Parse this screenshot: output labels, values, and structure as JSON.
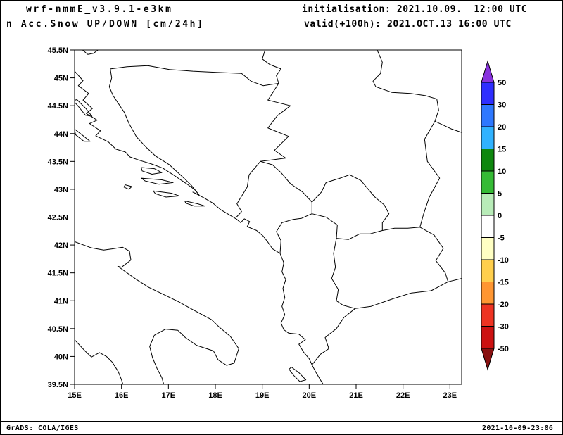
{
  "header": {
    "model_line": "wrf-nmmE_v3.9.1-e3km",
    "product_line": "n Acc.Snow UP/DOWN [cm/24h]",
    "init_line": "initialisation: 2021.10.09.  12:00 UTC",
    "valid_line": "valid(+100h): 2021.OCT.13 16:00 UTC"
  },
  "footer": {
    "credit": "GrADS: COLA/IGES",
    "timestamp": "2021-10-09-23:06"
  },
  "chart_data": {
    "type": "map",
    "title": "Acc.Snow UP/DOWN [cm/24h]",
    "model": "wrf-nmmE_v3.9.1-e3km",
    "initialisation": "2021.10.09. 12:00 UTC",
    "valid": "2021.OCT.13 16:00 UTC (+100h)",
    "grid": false,
    "projection": {
      "lon_range": [
        15.0,
        23.25
      ],
      "lat_range": [
        39.5,
        45.5
      ]
    },
    "field_note": "no shaded snow accumulation visible anywhere in domain (values in the white 0 band)",
    "lat_ticks": [
      {
        "value": 45.5,
        "label": "45.5N"
      },
      {
        "value": 45.0,
        "label": "45N"
      },
      {
        "value": 44.5,
        "label": "44.5N"
      },
      {
        "value": 44.0,
        "label": "44N"
      },
      {
        "value": 43.5,
        "label": "43.5N"
      },
      {
        "value": 43.0,
        "label": "43N"
      },
      {
        "value": 42.5,
        "label": "42.5N"
      },
      {
        "value": 42.0,
        "label": "42N"
      },
      {
        "value": 41.5,
        "label": "41.5N"
      },
      {
        "value": 41.0,
        "label": "41N"
      },
      {
        "value": 40.5,
        "label": "40.5N"
      },
      {
        "value": 40.0,
        "label": "40N"
      },
      {
        "value": 39.5,
        "label": "39.5N"
      }
    ],
    "lon_ticks": [
      {
        "value": 15,
        "label": "15E"
      },
      {
        "value": 16,
        "label": "16E"
      },
      {
        "value": 17,
        "label": "17E"
      },
      {
        "value": 18,
        "label": "18E"
      },
      {
        "value": 19,
        "label": "19E"
      },
      {
        "value": 20,
        "label": "20E"
      },
      {
        "value": 21,
        "label": "21E"
      },
      {
        "value": 22,
        "label": "22E"
      },
      {
        "value": 23,
        "label": "23E"
      }
    ],
    "colorbar": {
      "units": "cm/24h",
      "levels": [
        50,
        30,
        20,
        15,
        10,
        5,
        0,
        -5,
        -10,
        -15,
        -20,
        -30,
        -50
      ],
      "arrow_top_color": "#8833dd",
      "segment_colors": [
        "#2e2eff",
        "#2e78ff",
        "#30b2ff",
        "#0e870e",
        "#35bb35",
        "#b8ecb8",
        "#ffffff",
        "#ffffc3",
        "#ffcf4d",
        "#ff9632",
        "#ee3322",
        "#cc1111"
      ],
      "arrow_bottom_color": "#881111"
    },
    "map_outlines": {
      "coast_east_adriatic": [
        [
          15.0,
          45.12
        ],
        [
          15.18,
          44.95
        ],
        [
          15.08,
          44.86
        ],
        [
          15.3,
          44.72
        ],
        [
          15.18,
          44.6
        ],
        [
          15.38,
          44.45
        ],
        [
          15.25,
          44.36
        ],
        [
          15.48,
          44.24
        ],
        [
          15.32,
          44.18
        ],
        [
          15.55,
          44.05
        ],
        [
          15.45,
          43.96
        ],
        [
          15.72,
          43.85
        ],
        [
          15.88,
          43.72
        ],
        [
          16.08,
          43.67
        ],
        [
          16.18,
          43.58
        ],
        [
          16.38,
          43.52
        ],
        [
          16.62,
          43.46
        ],
        [
          16.88,
          43.38
        ],
        [
          17.12,
          43.25
        ],
        [
          17.42,
          43.08
        ],
        [
          17.58,
          42.98
        ],
        [
          17.65,
          42.9
        ],
        [
          17.52,
          42.95
        ],
        [
          17.75,
          42.85
        ],
        [
          17.95,
          42.75
        ],
        [
          18.12,
          42.63
        ],
        [
          18.32,
          42.53
        ],
        [
          18.46,
          42.46
        ],
        [
          18.54,
          42.4
        ],
        [
          18.62,
          42.47
        ],
        [
          18.73,
          42.42
        ],
        [
          18.68,
          42.33
        ],
        [
          18.88,
          42.26
        ],
        [
          19.02,
          42.16
        ],
        [
          19.12,
          42.05
        ],
        [
          19.22,
          41.93
        ],
        [
          19.38,
          41.85
        ],
        [
          19.46,
          41.68
        ],
        [
          19.42,
          41.52
        ],
        [
          19.5,
          41.38
        ],
        [
          19.44,
          41.22
        ],
        [
          19.48,
          41.06
        ],
        [
          19.42,
          40.9
        ],
        [
          19.48,
          40.75
        ],
        [
          19.4,
          40.6
        ],
        [
          19.46,
          40.48
        ],
        [
          19.56,
          40.42
        ],
        [
          19.78,
          40.4
        ],
        [
          19.92,
          40.3
        ],
        [
          19.78,
          40.22
        ],
        [
          19.88,
          40.08
        ],
        [
          20.0,
          39.96
        ],
        [
          20.06,
          39.85
        ],
        [
          20.14,
          39.72
        ],
        [
          20.24,
          39.58
        ],
        [
          20.3,
          39.5
        ]
      ],
      "italy_adriatic_coast": [
        [
          15.0,
          42.06
        ],
        [
          15.35,
          41.95
        ],
        [
          15.62,
          41.91
        ],
        [
          15.8,
          41.93
        ],
        [
          16.02,
          41.96
        ],
        [
          16.17,
          41.89
        ],
        [
          16.2,
          41.73
        ],
        [
          16.0,
          41.6
        ],
        [
          15.92,
          41.62
        ],
        [
          16.32,
          41.38
        ],
        [
          16.58,
          41.24
        ],
        [
          16.88,
          41.12
        ],
        [
          17.22,
          40.98
        ],
        [
          17.52,
          40.84
        ],
        [
          17.92,
          40.66
        ],
        [
          18.08,
          40.53
        ],
        [
          18.32,
          40.36
        ],
        [
          18.5,
          40.14
        ],
        [
          18.4,
          39.88
        ],
        [
          18.24,
          39.84
        ],
        [
          18.06,
          39.94
        ],
        [
          17.96,
          40.1
        ],
        [
          17.6,
          40.2
        ],
        [
          17.36,
          40.34
        ],
        [
          17.2,
          40.47
        ],
        [
          16.94,
          40.49
        ],
        [
          16.7,
          40.38
        ],
        [
          16.6,
          40.18
        ],
        [
          16.66,
          39.98
        ],
        [
          16.76,
          39.78
        ],
        [
          16.86,
          39.62
        ],
        [
          16.9,
          39.5
        ]
      ],
      "italy_tyrrhenian_coast": [
        [
          15.0,
          40.3
        ],
        [
          15.22,
          40.1
        ],
        [
          15.36,
          39.99
        ],
        [
          15.53,
          40.07
        ],
        [
          15.68,
          40.0
        ],
        [
          15.8,
          39.9
        ],
        [
          15.93,
          39.73
        ],
        [
          16.0,
          39.58
        ],
        [
          16.03,
          39.5
        ]
      ],
      "island_pag": [
        [
          15.05,
          44.61
        ],
        [
          15.24,
          44.45
        ],
        [
          15.37,
          44.31
        ],
        [
          15.23,
          44.33
        ],
        [
          15.08,
          44.49
        ],
        [
          14.97,
          44.59
        ],
        [
          15.05,
          44.61
        ]
      ],
      "island_dugi_otok": [
        [
          15.0,
          44.08
        ],
        [
          15.2,
          43.95
        ],
        [
          15.33,
          43.86
        ],
        [
          15.2,
          43.86
        ],
        [
          15.02,
          43.98
        ],
        [
          15.0,
          44.08
        ]
      ],
      "island_brac": [
        [
          16.42,
          43.39
        ],
        [
          16.7,
          43.37
        ],
        [
          16.86,
          43.3
        ],
        [
          16.65,
          43.27
        ],
        [
          16.44,
          43.33
        ],
        [
          16.42,
          43.39
        ]
      ],
      "island_hvar": [
        [
          16.42,
          43.2
        ],
        [
          16.86,
          43.17
        ],
        [
          17.1,
          43.12
        ],
        [
          16.8,
          43.09
        ],
        [
          16.5,
          43.15
        ],
        [
          16.42,
          43.2
        ]
      ],
      "island_korcula": [
        [
          16.68,
          42.97
        ],
        [
          17.06,
          42.93
        ],
        [
          17.23,
          42.88
        ],
        [
          16.95,
          42.86
        ],
        [
          16.72,
          42.92
        ],
        [
          16.68,
          42.97
        ]
      ],
      "island_mljet": [
        [
          17.35,
          42.79
        ],
        [
          17.62,
          42.74
        ],
        [
          17.78,
          42.7
        ],
        [
          17.55,
          42.7
        ],
        [
          17.37,
          42.75
        ],
        [
          17.35,
          42.79
        ]
      ],
      "island_vis": [
        [
          16.08,
          43.08
        ],
        [
          16.22,
          43.05
        ],
        [
          16.16,
          43.0
        ],
        [
          16.05,
          43.04
        ],
        [
          16.08,
          43.08
        ]
      ],
      "island_corfu": [
        [
          19.62,
          39.81
        ],
        [
          19.78,
          39.71
        ],
        [
          19.93,
          39.58
        ],
        [
          19.8,
          39.55
        ],
        [
          19.67,
          39.66
        ],
        [
          19.57,
          39.77
        ],
        [
          19.62,
          39.81
        ]
      ],
      "border_slovenia_croatia": [
        [
          15.17,
          45.5
        ],
        [
          15.28,
          45.42
        ],
        [
          15.4,
          45.44
        ],
        [
          15.5,
          45.5
        ]
      ],
      "border_bosnia": [
        [
          17.65,
          42.9
        ],
        [
          17.48,
          43.08
        ],
        [
          17.28,
          43.24
        ],
        [
          17.02,
          43.44
        ],
        [
          16.72,
          43.6
        ],
        [
          16.52,
          43.76
        ],
        [
          16.32,
          43.94
        ],
        [
          16.16,
          44.18
        ],
        [
          16.06,
          44.38
        ],
        [
          15.82,
          44.68
        ],
        [
          15.74,
          44.84
        ],
        [
          15.79,
          45.0
        ],
        [
          15.76,
          45.16
        ],
        [
          16.12,
          45.2
        ],
        [
          16.56,
          45.22
        ],
        [
          17.02,
          45.15
        ],
        [
          17.52,
          45.12
        ],
        [
          18.02,
          45.1
        ],
        [
          18.56,
          45.08
        ],
        [
          18.76,
          44.94
        ],
        [
          19.02,
          44.86
        ],
        [
          19.35,
          44.9
        ],
        [
          19.12,
          44.6
        ],
        [
          19.6,
          44.5
        ],
        [
          19.32,
          44.32
        ],
        [
          19.12,
          44.1
        ],
        [
          19.56,
          43.95
        ],
        [
          19.26,
          43.7
        ],
        [
          19.5,
          43.56
        ],
        [
          18.96,
          43.5
        ],
        [
          18.72,
          43.26
        ],
        [
          18.68,
          43.04
        ],
        [
          18.46,
          42.74
        ],
        [
          18.56,
          42.6
        ],
        [
          18.45,
          42.5
        ]
      ],
      "border_croatia_serbia": [
        [
          19.06,
          45.5
        ],
        [
          19.0,
          45.34
        ],
        [
          19.16,
          45.24
        ],
        [
          19.4,
          45.16
        ],
        [
          19.3,
          45.04
        ],
        [
          19.35,
          44.9
        ]
      ],
      "border_serbia_romania": [
        [
          21.45,
          45.5
        ],
        [
          21.56,
          45.28
        ],
        [
          21.52,
          45.08
        ],
        [
          21.36,
          44.94
        ],
        [
          21.42,
          44.84
        ],
        [
          21.76,
          44.74
        ],
        [
          22.16,
          44.72
        ],
        [
          22.48,
          44.68
        ],
        [
          22.72,
          44.62
        ],
        [
          22.76,
          44.42
        ],
        [
          22.68,
          44.22
        ]
      ],
      "border_bulgaria_romania": [
        [
          22.68,
          44.22
        ],
        [
          23.04,
          44.08
        ],
        [
          23.25,
          44.02
        ]
      ],
      "border_serbia_bulgaria": [
        [
          22.68,
          44.22
        ],
        [
          22.46,
          43.9
        ],
        [
          22.52,
          43.5
        ],
        [
          22.78,
          43.2
        ],
        [
          22.56,
          42.86
        ],
        [
          22.44,
          42.56
        ],
        [
          22.36,
          42.32
        ]
      ],
      "border_macedonia_bulgaria": [
        [
          22.36,
          42.32
        ],
        [
          22.66,
          42.18
        ],
        [
          22.86,
          41.94
        ],
        [
          22.7,
          41.72
        ],
        [
          22.9,
          41.5
        ],
        [
          22.96,
          41.34
        ]
      ],
      "border_bulgaria_greece": [
        [
          22.96,
          41.34
        ],
        [
          23.25,
          41.4
        ]
      ],
      "border_macedonia_greece": [
        [
          22.96,
          41.34
        ],
        [
          22.6,
          41.18
        ],
        [
          22.18,
          41.14
        ],
        [
          21.8,
          41.04
        ],
        [
          21.32,
          40.9
        ],
        [
          20.98,
          40.86
        ]
      ],
      "border_serbia_macedonia": [
        [
          21.56,
          42.26
        ],
        [
          21.82,
          42.3
        ],
        [
          22.1,
          42.3
        ],
        [
          22.36,
          42.32
        ]
      ],
      "border_albania_macedonia": [
        [
          20.58,
          42.12
        ],
        [
          20.52,
          41.85
        ],
        [
          20.56,
          41.6
        ],
        [
          20.48,
          41.4
        ],
        [
          20.62,
          41.2
        ],
        [
          20.58,
          41.0
        ],
        [
          20.72,
          40.92
        ],
        [
          20.98,
          40.86
        ]
      ],
      "border_albania_greece": [
        [
          20.98,
          40.86
        ],
        [
          20.74,
          40.7
        ],
        [
          20.58,
          40.5
        ],
        [
          20.34,
          40.34
        ],
        [
          20.42,
          40.14
        ],
        [
          20.24,
          40.04
        ],
        [
          20.06,
          39.85
        ]
      ],
      "border_kosovo": [
        [
          20.06,
          42.77
        ],
        [
          20.26,
          42.95
        ],
        [
          20.36,
          43.12
        ],
        [
          20.66,
          43.2
        ],
        [
          20.86,
          43.26
        ],
        [
          21.1,
          43.16
        ],
        [
          21.26,
          43.0
        ],
        [
          21.4,
          42.86
        ],
        [
          21.6,
          42.72
        ],
        [
          21.7,
          42.56
        ],
        [
          21.56,
          42.4
        ],
        [
          21.56,
          42.26
        ],
        [
          21.3,
          42.2
        ],
        [
          21.08,
          42.2
        ],
        [
          20.84,
          42.1
        ],
        [
          20.58,
          42.12
        ],
        [
          20.6,
          42.36
        ],
        [
          20.36,
          42.5
        ],
        [
          20.06,
          42.56
        ],
        [
          20.06,
          42.77
        ]
      ],
      "border_montenegro_albania": [
        [
          19.38,
          41.85
        ],
        [
          19.4,
          42.08
        ],
        [
          19.3,
          42.24
        ],
        [
          19.42,
          42.4
        ],
        [
          19.66,
          42.46
        ],
        [
          19.84,
          42.48
        ],
        [
          20.0,
          42.54
        ],
        [
          20.06,
          42.56
        ]
      ],
      "border_montenegro_serbia": [
        [
          20.06,
          42.77
        ],
        [
          19.86,
          42.95
        ],
        [
          19.6,
          43.1
        ],
        [
          19.4,
          43.3
        ],
        [
          19.22,
          43.44
        ],
        [
          18.96,
          43.5
        ]
      ]
    }
  }
}
